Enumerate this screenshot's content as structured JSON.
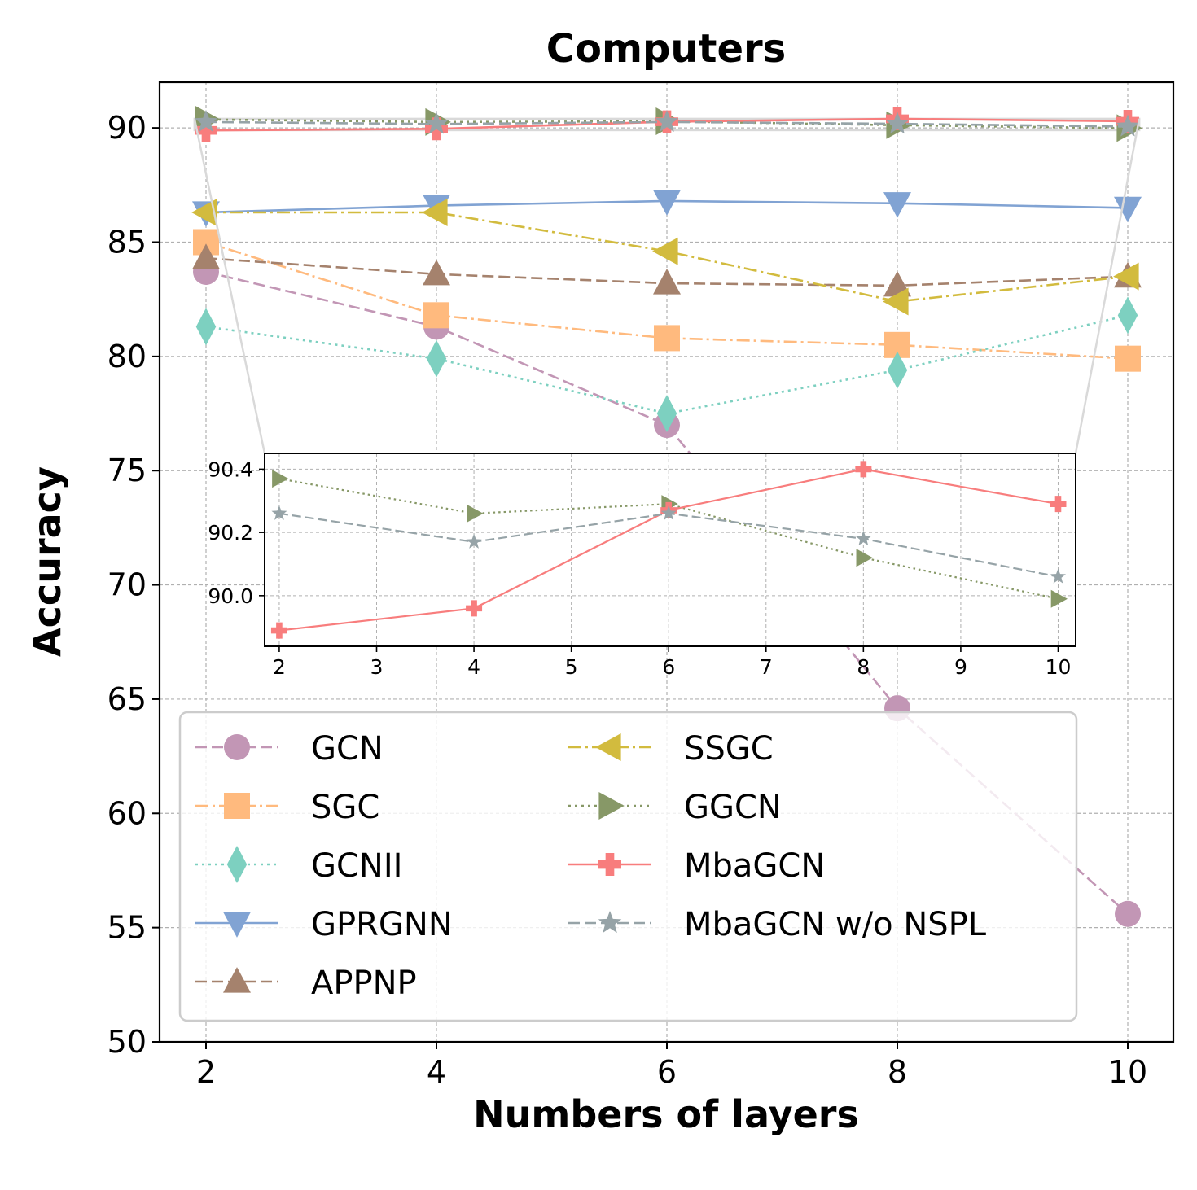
{
  "chart_data": {
    "type": "line",
    "title": "Computers",
    "xlabel": "Numbers of layers",
    "ylabel": "Accuracy",
    "x": [
      2,
      4,
      6,
      8,
      10
    ],
    "xticks": [
      "2",
      "4",
      "6",
      "8",
      "10"
    ],
    "ylim": [
      50,
      92
    ],
    "yticks": [
      "50",
      "55",
      "60",
      "65",
      "70",
      "75",
      "80",
      "85",
      "90"
    ],
    "grid": true,
    "legend_position": "lower-left",
    "series": [
      {
        "name": "GCN",
        "values": [
          83.7,
          81.3,
          77.0,
          64.6,
          55.6
        ],
        "color": "#c296b5",
        "dash": "dashed",
        "marker": "circle"
      },
      {
        "name": "SGC",
        "values": [
          85.0,
          81.8,
          80.8,
          80.5,
          79.9
        ],
        "color": "#ffba7e",
        "dash": "dashdot",
        "marker": "square"
      },
      {
        "name": "GCNII",
        "values": [
          81.3,
          79.9,
          77.5,
          79.4,
          81.8
        ],
        "color": "#7dd0c0",
        "dash": "dotted",
        "marker": "thin_diamond"
      },
      {
        "name": "GPRGNN",
        "values": [
          86.3,
          86.6,
          86.8,
          86.7,
          86.5
        ],
        "color": "#81a3d3",
        "dash": "solid",
        "marker": "triangle_down"
      },
      {
        "name": "APPNP",
        "values": [
          84.3,
          83.6,
          83.2,
          83.1,
          83.5
        ],
        "color": "#a5826d",
        "dash": "dashed",
        "marker": "triangle_up"
      },
      {
        "name": "SSGC",
        "values": [
          86.3,
          86.3,
          84.6,
          82.4,
          83.5
        ],
        "color": "#d2bb3e",
        "dash": "dashdot",
        "marker": "triangle_left"
      },
      {
        "name": "GGCN",
        "values": [
          90.37,
          90.26,
          90.29,
          90.12,
          89.99
        ],
        "color": "#879867",
        "dash": "dotted",
        "marker": "triangle_right"
      },
      {
        "name": "MbaGCN",
        "values": [
          89.89,
          89.96,
          90.27,
          90.4,
          90.29
        ],
        "color": "#f87d7d",
        "dash": "solid",
        "marker": "plus_filled"
      },
      {
        "name": "MbaGCN w/o NSPL",
        "values": [
          90.26,
          90.17,
          90.26,
          90.18,
          90.06
        ],
        "color": "#96a3a7",
        "dash": "dashed",
        "marker": "star"
      }
    ],
    "inset": {
      "series_names": [
        "GGCN",
        "MbaGCN",
        "MbaGCN w/o NSPL"
      ],
      "x": [
        2,
        4,
        6,
        8,
        10
      ],
      "xticks": [
        "2",
        "3",
        "4",
        "5",
        "6",
        "7",
        "8",
        "9",
        "10"
      ],
      "yticks": [
        "90.0",
        "90.2",
        "90.4"
      ],
      "xlim": [
        1.85,
        10.18
      ],
      "ylim": [
        89.84,
        90.45
      ],
      "zoom_region": {
        "x": [
          1.9,
          10.1
        ],
        "y": [
          89.9,
          90.4
        ]
      }
    }
  }
}
